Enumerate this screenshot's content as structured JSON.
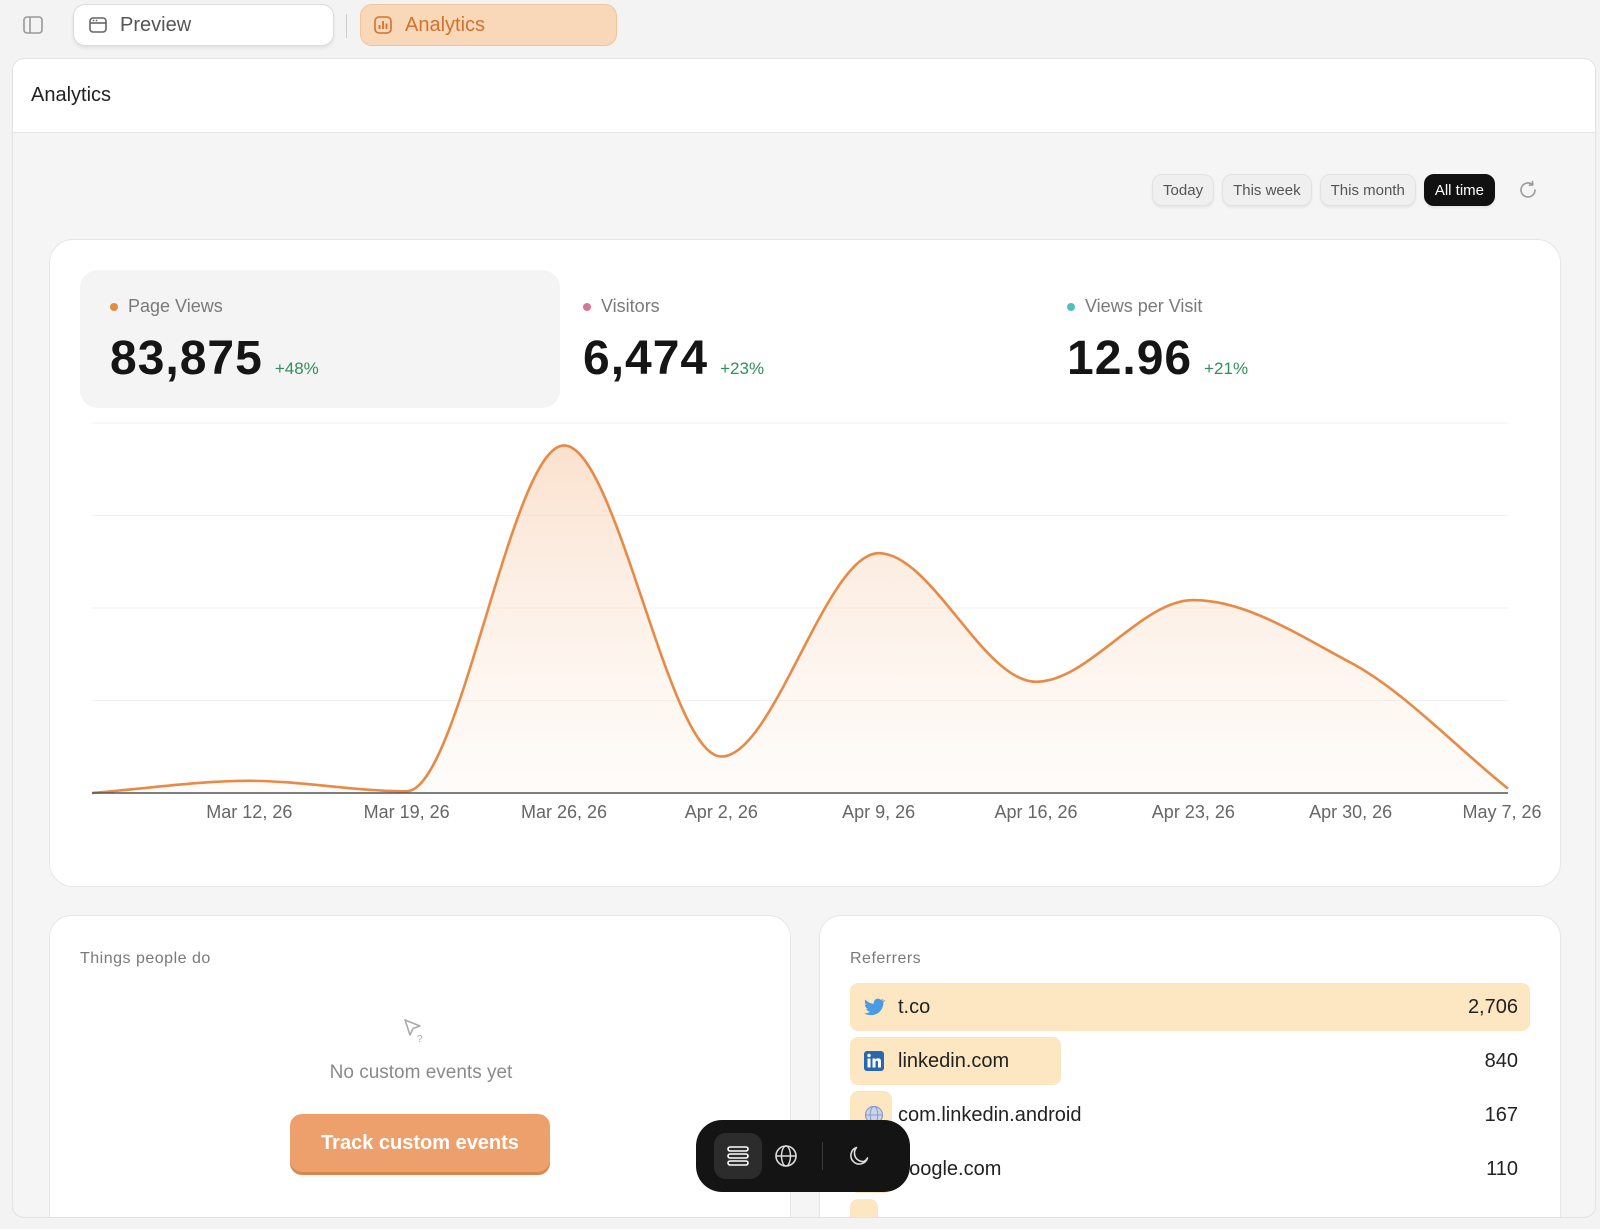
{
  "tabs": {
    "preview_label": "Preview",
    "analytics_label": "Analytics"
  },
  "page": {
    "title": "Analytics"
  },
  "range": {
    "options": [
      "Today",
      "This week",
      "This month",
      "All time"
    ],
    "selected": "All time"
  },
  "stats": [
    {
      "label": "Page Views",
      "value": "83,875",
      "change": "+48%",
      "color": "#e88a45"
    },
    {
      "label": "Visitors",
      "value": "6,474",
      "change": "+23%",
      "color": "#d9779b"
    },
    {
      "label": "Views per Visit",
      "value": "12.96",
      "change": "+21%",
      "color": "#4fbfbf"
    }
  ],
  "chart_data": {
    "type": "area",
    "series_color": "#e88a45",
    "x_ticks": [
      "Mar 12, 26",
      "Mar 19, 26",
      "Mar 26, 26",
      "Apr 2, 26",
      "Apr 9, 26",
      "Apr 16, 26",
      "Apr 23, 26",
      "Apr 30, 26",
      "May 7, 26"
    ],
    "points": [
      {
        "x": "2026-03-05",
        "y": 0
      },
      {
        "x": "2026-03-12",
        "y": 14
      },
      {
        "x": "2026-03-19",
        "y": 2
      },
      {
        "x": "2026-03-26",
        "y": 400
      },
      {
        "x": "2026-04-02",
        "y": 42
      },
      {
        "x": "2026-04-09",
        "y": 276
      },
      {
        "x": "2026-04-16",
        "y": 128
      },
      {
        "x": "2026-04-23",
        "y": 222
      },
      {
        "x": "2026-04-30",
        "y": 150
      },
      {
        "x": "2026-05-07",
        "y": 5
      }
    ],
    "ylim": [
      0,
      412
    ],
    "grid": true
  },
  "events": {
    "title": "Things people do",
    "empty_text": "No custom events yet",
    "button_label": "Track custom events"
  },
  "referrers": {
    "title": "Referrers",
    "items": [
      {
        "name": "t.co",
        "count": "2,706",
        "value": 2706,
        "icon": "twitter-icon"
      },
      {
        "name": "linkedin.com",
        "count": "840",
        "value": 840,
        "icon": "linkedin-icon"
      },
      {
        "name": "com.linkedin.android",
        "count": "167",
        "value": 167,
        "icon": "globe-icon"
      },
      {
        "name": "google.com",
        "count": "110",
        "value": 110,
        "icon": "google-icon"
      }
    ]
  },
  "colors": {
    "accent": "#e88a45",
    "positive": "#2f8f5a",
    "referrer_bar": "#fde7c2"
  }
}
